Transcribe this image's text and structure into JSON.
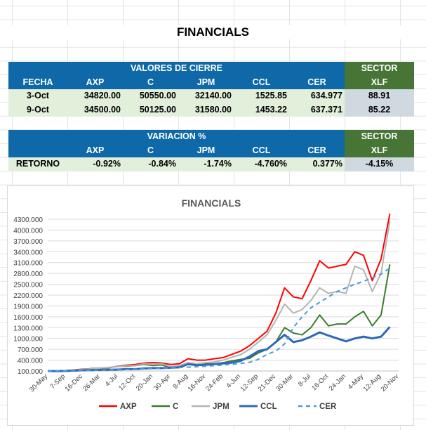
{
  "title": "FINANCIALS",
  "closing_table": {
    "group_header": "VALORES DE CIERRE",
    "sector_header": "SECTOR",
    "columns": [
      "FECHA",
      "AXP",
      "C",
      "JPM",
      "CCL",
      "CER",
      "XLF"
    ],
    "rows": [
      [
        "3-Oct",
        "34820.00",
        "50550.00",
        "32140.00",
        "1525.85",
        "634.977",
        "88.91"
      ],
      [
        "9-Oct",
        "34500.00",
        "50125.00",
        "31580.00",
        "1453.22",
        "637.371",
        "85.22"
      ]
    ]
  },
  "variation_table": {
    "group_header": "VARIACION %",
    "sector_header": "SECTOR",
    "columns": [
      "",
      "AXP",
      "C",
      "JPM",
      "CCL",
      "CER",
      "XLF"
    ],
    "row": [
      "RETORNO",
      "-0.92%",
      "-0.84%",
      "-1.74%",
      "-4.760%",
      "0.377%",
      "-4.15%"
    ]
  },
  "chart_data": {
    "type": "line",
    "title": "FINANCIALS",
    "ylim": [
      100,
      4300
    ],
    "yticks": [
      "4300.000",
      "4000.000",
      "3700.000",
      "3400.000",
      "3100.000",
      "2800.000",
      "2500.000",
      "2200.000",
      "1900.000",
      "1600.000",
      "1300.000",
      "1000.000",
      "700.000",
      "400.000",
      "100.000"
    ],
    "ytick_values": [
      4300,
      4000,
      3700,
      3400,
      3100,
      2800,
      2500,
      2200,
      1900,
      1600,
      1300,
      1000,
      700,
      400,
      100
    ],
    "xtick_labels": [
      "30-May",
      "7-Sep",
      "16-Dec",
      "26-Mar",
      "4-Jul",
      "12-Oct",
      "20-Jan",
      "30-Apr",
      "8-Aug",
      "16-Nov",
      "24-Feb",
      "4-Jun",
      "12-Sep",
      "21-Dec",
      "30-Mar",
      "8-Jul",
      "16-Oct",
      "24-Jan",
      "4-May",
      "12-Aug",
      "20-Nov"
    ],
    "x_index": [
      0,
      0.5,
      1,
      1.5,
      2,
      2.5,
      3,
      3.5,
      4,
      4.5,
      5,
      5.5,
      6,
      6.5,
      7,
      7.5,
      8,
      8.5,
      9,
      9.5,
      10,
      10.5,
      11,
      11.5,
      12,
      12.5,
      13,
      13.5,
      14,
      14.5,
      15,
      15.5,
      16,
      16.5,
      17,
      17.5,
      18,
      18.5,
      19,
      19.5
    ],
    "grid": true,
    "legend_position": "bottom",
    "series": [
      {
        "name": "AXP",
        "color": "#ff0000",
        "dash": false,
        "values": [
          100,
          100,
          110,
          130,
          150,
          160,
          170,
          190,
          230,
          260,
          280,
          320,
          330,
          320,
          280,
          300,
          440,
          400,
          400,
          440,
          470,
          560,
          650,
          800,
          1000,
          1200,
          1700,
          2400,
          2150,
          2100,
          2600,
          3150,
          2950,
          3000,
          3050,
          3400,
          3300,
          2600,
          3200,
          4450
        ]
      },
      {
        "name": "C",
        "color": "#3a7d2c",
        "dash": false,
        "values": [
          100,
          100,
          110,
          120,
          140,
          170,
          180,
          190,
          230,
          230,
          250,
          280,
          250,
          270,
          190,
          220,
          280,
          260,
          300,
          300,
          330,
          380,
          420,
          450,
          600,
          700,
          900,
          1300,
          1150,
          1100,
          1300,
          1650,
          1350,
          1400,
          1400,
          1600,
          1750,
          1350,
          1650,
          3050
        ]
      },
      {
        "name": "JPM",
        "color": "#b4b4b4",
        "dash": false,
        "values": [
          100,
          100,
          110,
          125,
          145,
          160,
          180,
          200,
          220,
          240,
          250,
          300,
          280,
          300,
          220,
          250,
          330,
          300,
          330,
          350,
          400,
          480,
          550,
          700,
          900,
          1100,
          1500,
          1950,
          1700,
          1800,
          2050,
          2400,
          2250,
          2300,
          2250,
          3000,
          2900,
          2300,
          2800,
          4250
        ]
      },
      {
        "name": "CCL",
        "color": "#2e69b8",
        "dash": false,
        "values": [
          100,
          95,
          100,
          110,
          120,
          125,
          130,
          135,
          140,
          150,
          150,
          170,
          180,
          180,
          190,
          200,
          290,
          260,
          270,
          290,
          310,
          330,
          380,
          500,
          650,
          700,
          900,
          1100,
          900,
          950,
          1050,
          1170,
          1080,
          1000,
          920,
          1000,
          1050,
          1000,
          1050,
          1320
        ]
      },
      {
        "name": "CER",
        "color": "#4a9bd8",
        "dash": true,
        "values": [
          100,
          103,
          106,
          110,
          115,
          120,
          125,
          130,
          136,
          142,
          150,
          158,
          166,
          175,
          185,
          195,
          206,
          218,
          232,
          248,
          265,
          285,
          310,
          340,
          420,
          560,
          650,
          850,
          1300,
          1600,
          1850,
          2000,
          2150,
          2300,
          2400,
          2500,
          2580,
          2680,
          2780,
          2950
        ]
      }
    ]
  }
}
